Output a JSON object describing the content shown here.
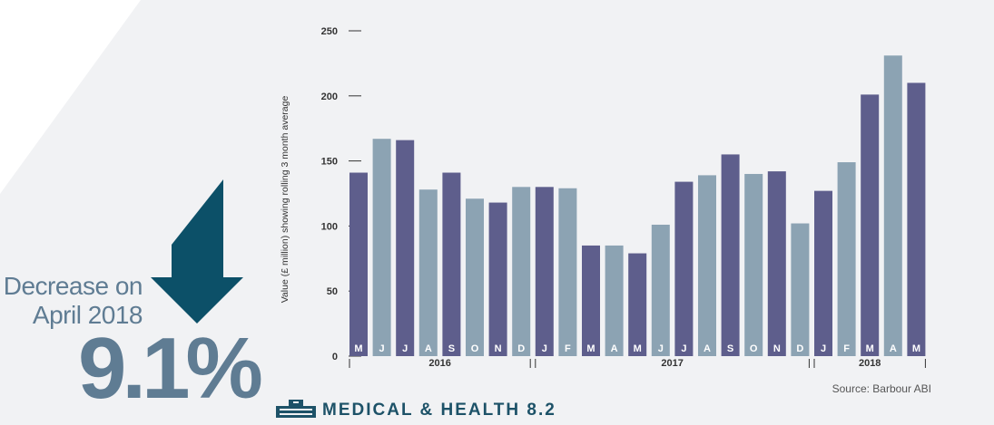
{
  "headline": {
    "line1": "Decrease on",
    "line2": "April 2018",
    "value": "9.1%"
  },
  "footer": {
    "title": "MEDICAL & HEALTH 8.2",
    "source": "Source: Barbour ABI"
  },
  "colors": {
    "bar_dark": "#5e5e8c",
    "bar_light": "#8ca3b3",
    "arrow": "#0c5068",
    "panel": "#f1f2f4",
    "accent_text": "#5f7c93"
  },
  "chart_data": {
    "type": "bar",
    "ylabel": "Value (£ million) showing rolling 3 month average",
    "ylim": [
      0,
      250
    ],
    "yticks": [
      0,
      50,
      100,
      150,
      200,
      250
    ],
    "categories": [
      "M",
      "J",
      "J",
      "A",
      "S",
      "O",
      "N",
      "D",
      "J",
      "F",
      "M",
      "A",
      "M",
      "J",
      "J",
      "A",
      "S",
      "O",
      "N",
      "D",
      "J",
      "F",
      "M",
      "A",
      "M"
    ],
    "values": [
      141,
      167,
      166,
      128,
      141,
      121,
      118,
      130,
      130,
      129,
      85,
      85,
      79,
      101,
      134,
      139,
      155,
      140,
      142,
      102,
      127,
      149,
      201,
      231,
      210
    ],
    "shades": [
      "dark",
      "light",
      "dark",
      "light",
      "dark",
      "light",
      "dark",
      "light",
      "dark",
      "light",
      "dark",
      "light",
      "dark",
      "light",
      "dark",
      "light",
      "dark",
      "light",
      "dark",
      "light",
      "dark",
      "light",
      "dark",
      "light",
      "dark"
    ],
    "years": [
      {
        "label": "2016",
        "start": 0,
        "end": 7
      },
      {
        "label": "2017",
        "start": 8,
        "end": 19
      },
      {
        "label": "2018",
        "start": 20,
        "end": 24
      }
    ]
  }
}
